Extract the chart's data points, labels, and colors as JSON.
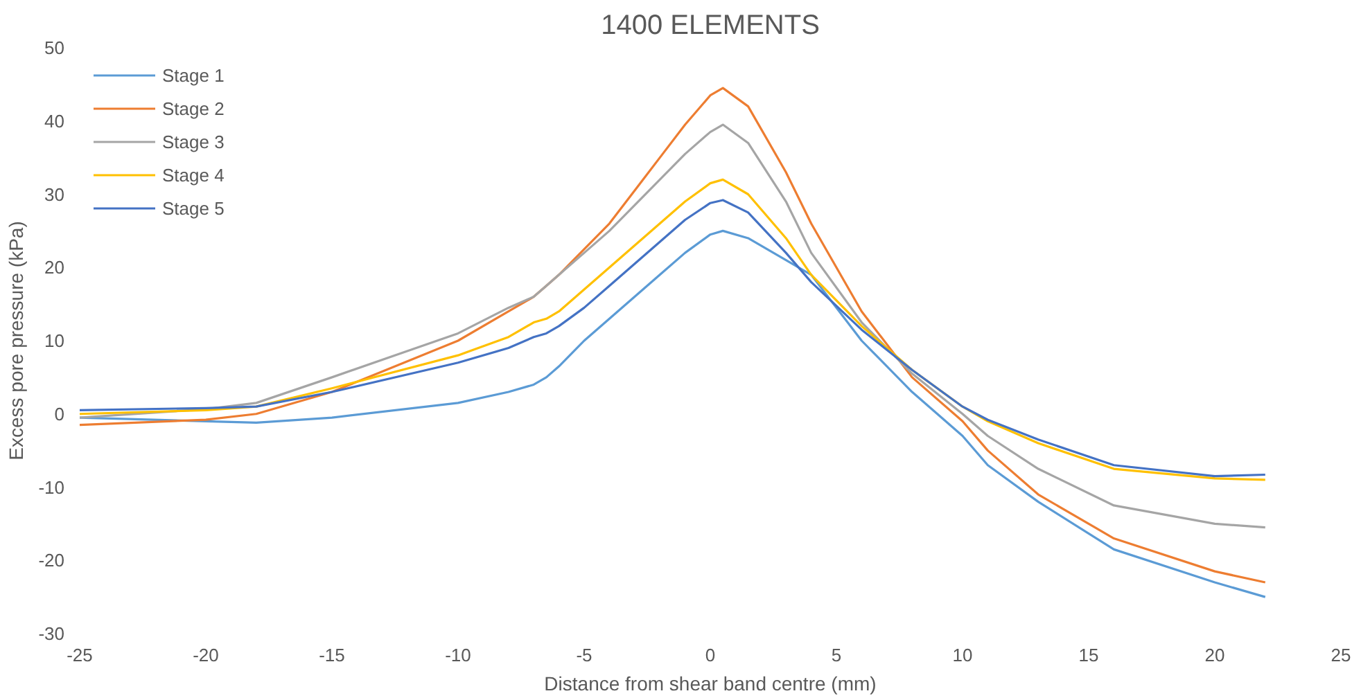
{
  "chart_data": {
    "type": "line",
    "title": "1400 ELEMENTS",
    "xlabel": "Distance from shear band centre (mm)",
    "ylabel": "Excess pore pressure (kPa)",
    "x": [
      -25,
      -20,
      -18,
      -15,
      -10,
      -8,
      -7,
      -6.5,
      -6,
      -5,
      -4,
      -3,
      -2,
      -1,
      0,
      0.5,
      1.5,
      3,
      4,
      6,
      8,
      10,
      11,
      13,
      16,
      20,
      22
    ],
    "series": [
      {
        "name": "Stage 1",
        "color": "#5b9bd5",
        "values": [
          -0.5,
          -1,
          -1.2,
          -0.5,
          1.5,
          3,
          4,
          5,
          6.5,
          10,
          13,
          16,
          19,
          22,
          24.5,
          25,
          24,
          21,
          19,
          10,
          3,
          -3,
          -7,
          -12,
          -18.5,
          -23,
          -25
        ]
      },
      {
        "name": "Stage 2",
        "color": "#ed7d31",
        "values": [
          -1.5,
          -0.8,
          0,
          3,
          10,
          14,
          16,
          17.5,
          19,
          22.5,
          26,
          30.5,
          35,
          39.5,
          43.5,
          44.5,
          42,
          33,
          26,
          14,
          5,
          -1,
          -5,
          -11,
          -17,
          -21.5,
          -23
        ]
      },
      {
        "name": "Stage 3",
        "color": "#a5a5a5",
        "values": [
          -0.5,
          0.65,
          1.5,
          5,
          11,
          14.5,
          16,
          17.5,
          19,
          22,
          25,
          28.5,
          32,
          35.5,
          38.5,
          39.5,
          37,
          29,
          22,
          12.5,
          5.5,
          0,
          -3,
          -7.5,
          -12.5,
          -15,
          -15.5
        ]
      },
      {
        "name": "Stage 4",
        "color": "#ffc000",
        "values": [
          0,
          0.5,
          1,
          3.5,
          8,
          10.5,
          12.5,
          13,
          14,
          17,
          20,
          23,
          26,
          29,
          31.5,
          32,
          30,
          24,
          19,
          12,
          6,
          1,
          -1,
          -4,
          -7.5,
          -8.8,
          -9
        ]
      },
      {
        "name": "Stage 5",
        "color": "#4472c4",
        "values": [
          0.5,
          0.8,
          1,
          3,
          7,
          9,
          10.5,
          11,
          12,
          14.5,
          17.5,
          20.5,
          23.5,
          26.5,
          28.8,
          29.2,
          27.5,
          22,
          18,
          11.5,
          6,
          1,
          -0.8,
          -3.5,
          -7,
          -8.5,
          -8.3
        ]
      }
    ],
    "xlim": [
      -25,
      25
    ],
    "xticks": [
      -25,
      -20,
      -15,
      -10,
      -5,
      0,
      5,
      10,
      15,
      20,
      25
    ],
    "ylim": [
      -30,
      50
    ],
    "yticks": [
      -30,
      -20,
      -10,
      0,
      10,
      20,
      30,
      40,
      50
    ],
    "grid": false,
    "legend": "top left",
    "marker": "none",
    "line_style": "solid"
  }
}
